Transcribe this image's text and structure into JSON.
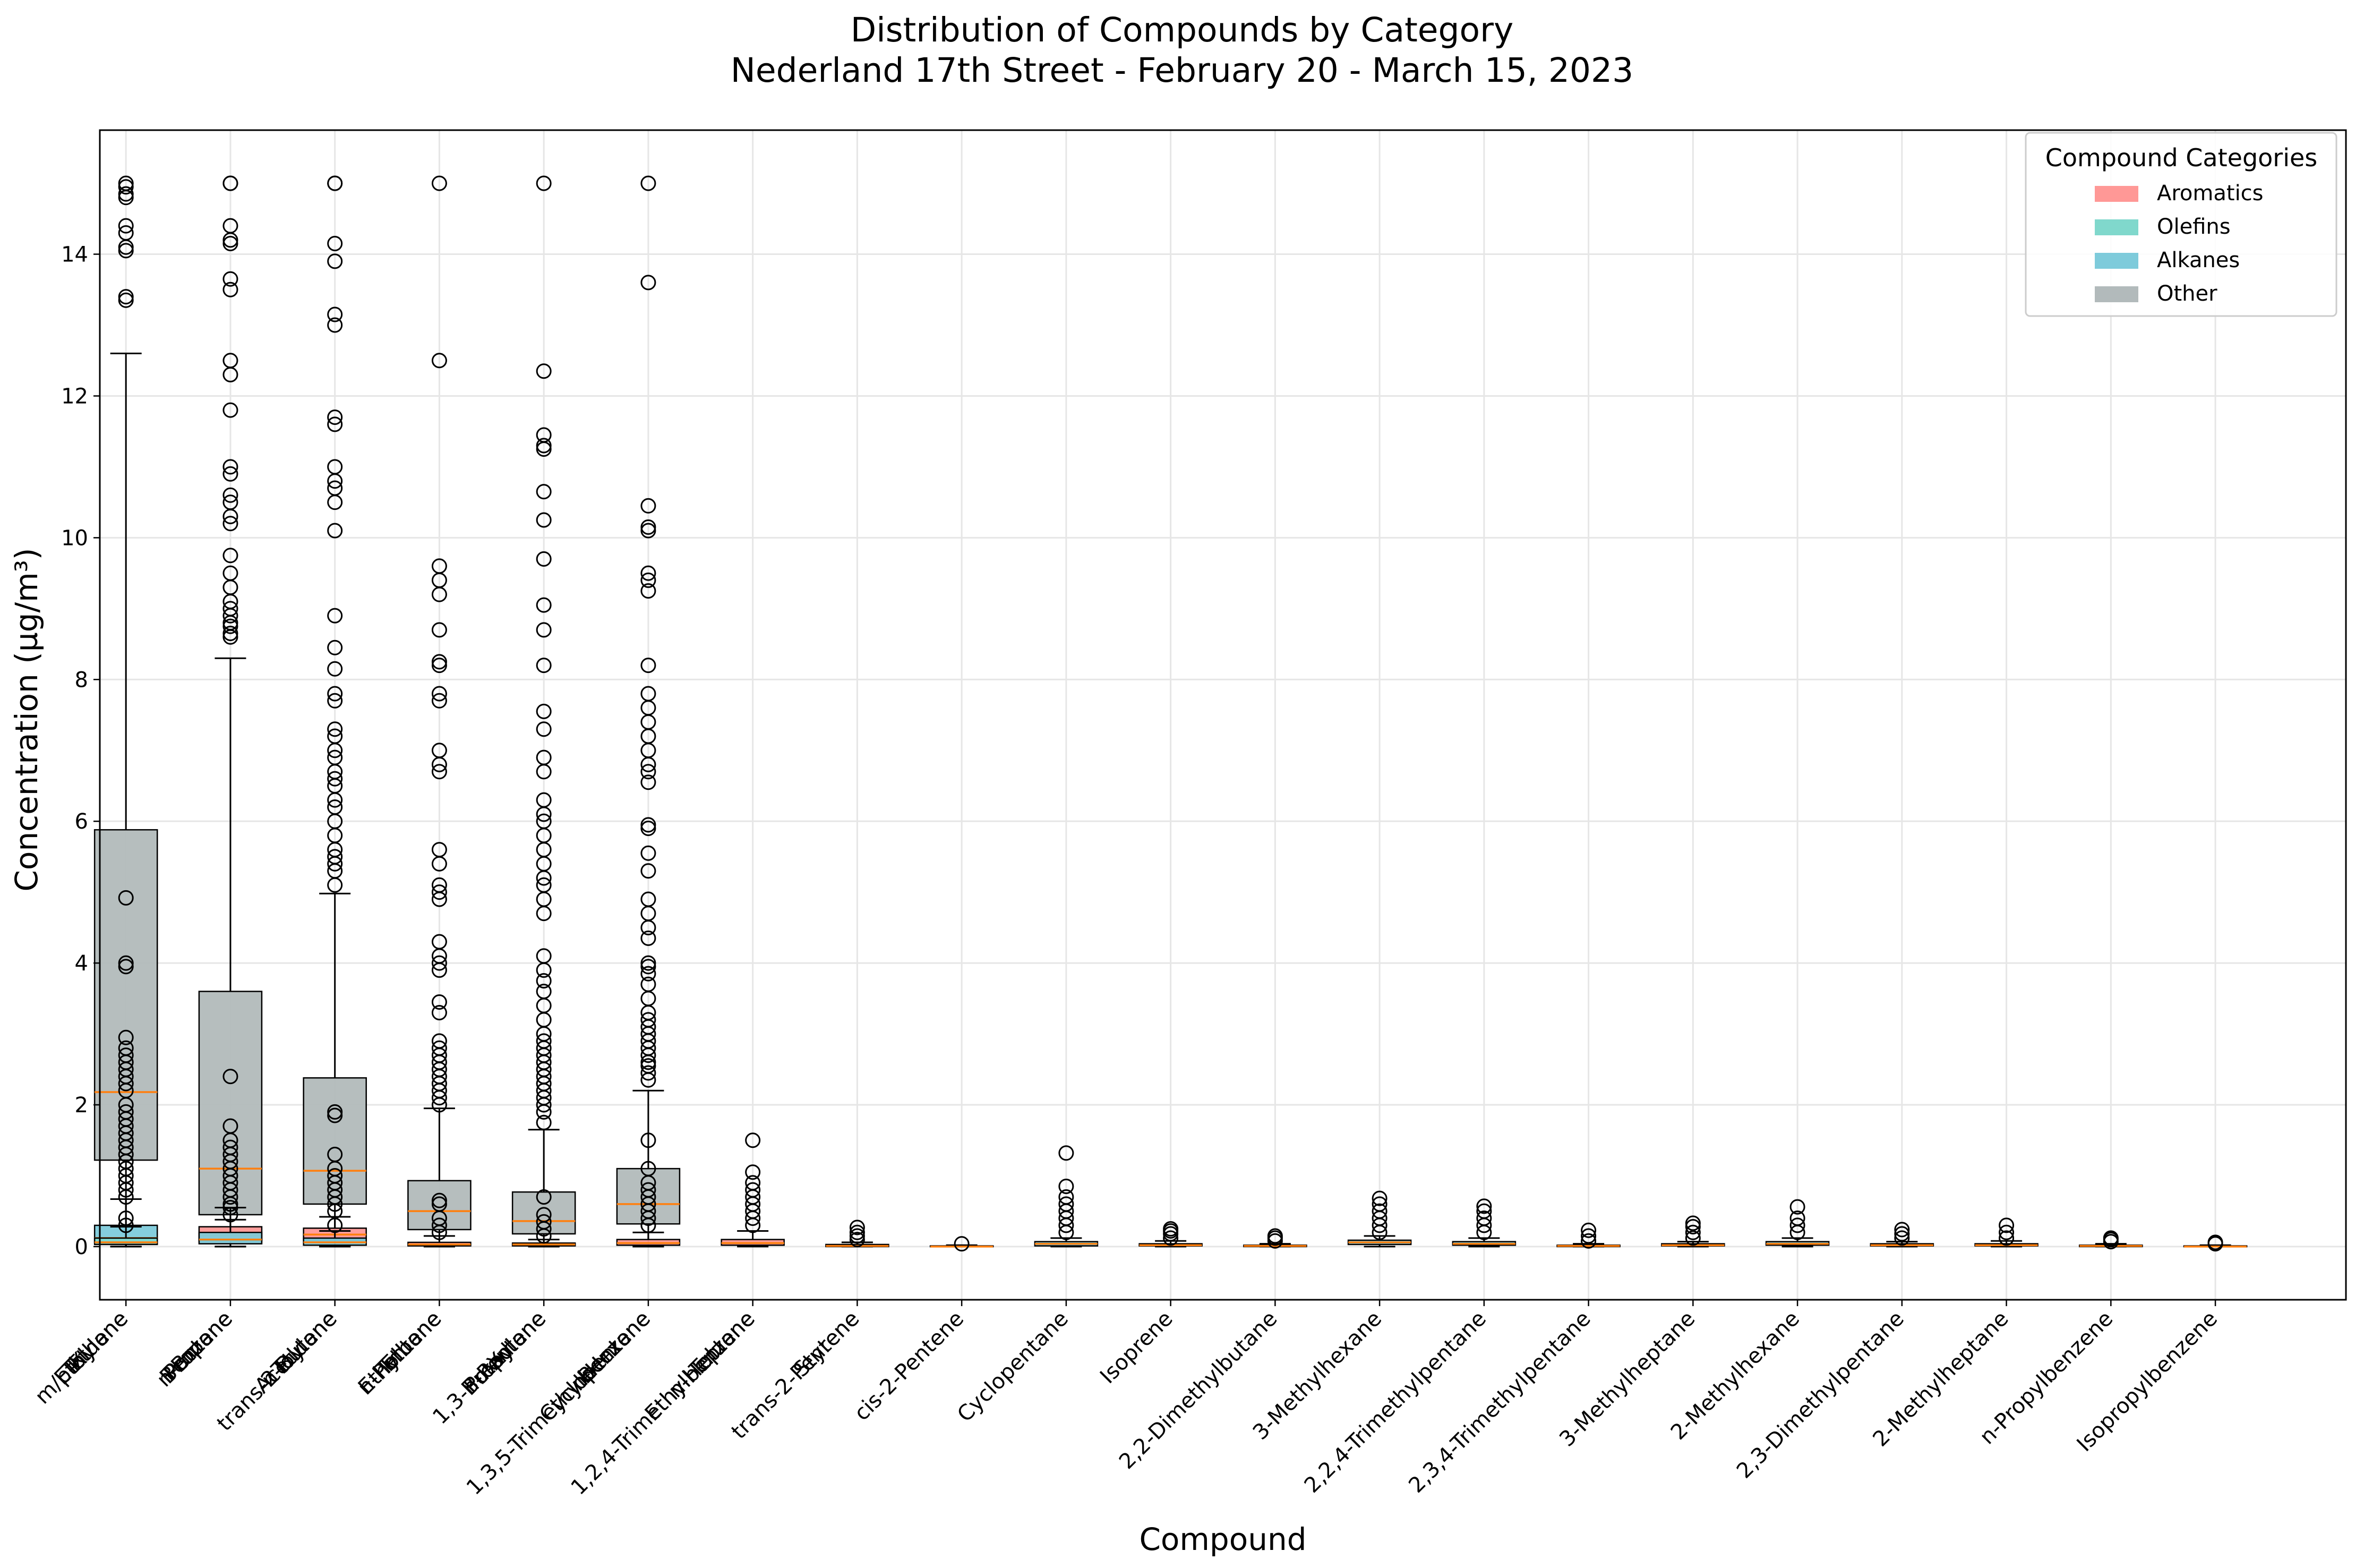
{
  "chart_data": {
    "type": "boxplot",
    "title": "Distribution of Compounds by Category",
    "subtitle": "Nederland 17th Street - February 20 - March 15, 2023",
    "xlabel": "Compound",
    "ylabel": "Concentration (µg/m³)",
    "ylim": [
      -0.75,
      15.75
    ],
    "yticks": [
      0,
      2,
      4,
      6,
      8,
      10,
      12,
      14
    ],
    "grid": true,
    "legend": {
      "title": "Compound Categories",
      "placement": "top-right",
      "entries": [
        {
          "label": "Aromatics",
          "color": "#ff9896"
        },
        {
          "label": "Olefins",
          "color": "#80d8cc"
        },
        {
          "label": "Alkanes",
          "color": "#7ecbdb"
        },
        {
          "label": "Other",
          "color": "#b2babb"
        }
      ]
    },
    "median_color": "#ff7f0e",
    "xtick_labels": [
      "m/p-Xylene",
      "Propane",
      "trans-2-Butene",
      "Ethylbene",
      "1,3-Butadiene",
      "Cyclopentene",
      "1,2,4-Trimethylbenzene",
      "trans-2-Pentene",
      "cis-2-Pentene",
      "Cyclopentane",
      "Isoprene",
      "2,2-Dimethylbutane",
      "3-Methylhexane",
      "2,2,4-Trimethylpentane",
      "2,3,4-Trimethylpentane",
      "3-Methylheptane",
      "2-Methylhexane",
      "2,3-Dimethylpentane",
      "2-Methylheptane",
      "n-Propylbenzene",
      "Isopropylbenzene"
    ],
    "xtick_overlap_labels": [
      [
        "Ethylene",
        "Ethane",
        "Toluene"
      ],
      [
        "n-Butane",
        "Pentane",
        "Benzene"
      ],
      [
        "Toluene",
        "Acetylene",
        "n-Butane"
      ],
      [
        "Ethane",
        "n-Pentane",
        "Toluene"
      ],
      [
        "o-Xylene",
        "n-Pentane",
        "Propylene"
      ],
      [
        "1,3,5-Trimethylbenzene",
        "n-Hexane",
        "Benzene"
      ],
      [
        "n-Heptane",
        "Ethylbenzene",
        "Toluene"
      ],
      [
        "Styrene"
      ]
    ],
    "series": [
      {
        "x": 1,
        "category": "Other",
        "q1": 1.22,
        "median": 2.18,
        "q3": 5.88,
        "whisker_low": 0,
        "whisker_high": 12.6,
        "fliers": [
          15.0,
          14.95,
          14.85,
          14.8,
          14.4,
          14.3,
          14.1,
          14.05,
          13.4,
          13.35
        ]
      },
      {
        "x": 1,
        "category": "Alkanes",
        "q1": 0.05,
        "median": 0.12,
        "q3": 0.3,
        "whisker_low": 0,
        "whisker_high": 0.67,
        "fliers": [
          0.7,
          0.8,
          0.9,
          1.0,
          1.1,
          1.2,
          1.3,
          1.4,
          1.5,
          1.6,
          1.7,
          1.8,
          1.9,
          2.0,
          2.2,
          2.3,
          2.4,
          2.5,
          2.6,
          2.7,
          2.8,
          2.95,
          3.95,
          4.0,
          4.92
        ]
      },
      {
        "x": 1,
        "category": "Olefins",
        "q1": 0.03,
        "median": 0.06,
        "q3": 0.12,
        "whisker_low": 0,
        "whisker_high": 0.28,
        "fliers": [
          0.3,
          0.4
        ]
      },
      {
        "x": 2,
        "category": "Other",
        "q1": 0.45,
        "median": 1.1,
        "q3": 3.6,
        "whisker_low": 0,
        "whisker_high": 8.3,
        "fliers": [
          8.6,
          8.65,
          8.75,
          8.8,
          8.9,
          9.0,
          9.1,
          9.3,
          9.5,
          9.75,
          10.2,
          10.3,
          10.5,
          10.6,
          10.9,
          11.0,
          11.8,
          12.3,
          12.5,
          13.5,
          13.65,
          14.15,
          14.2,
          14.4,
          15.0,
          15.0
        ]
      },
      {
        "x": 2,
        "category": "Aromatics",
        "q1": 0.08,
        "median": 0.16,
        "q3": 0.28,
        "whisker_low": 0,
        "whisker_high": 0.55,
        "fliers": [
          0.6,
          0.7,
          0.8,
          0.9,
          1.0,
          1.1,
          1.2,
          1.3,
          1.4,
          1.5,
          1.7,
          2.4
        ]
      },
      {
        "x": 2,
        "category": "Alkanes",
        "q1": 0.04,
        "median": 0.1,
        "q3": 0.2,
        "whisker_low": 0,
        "whisker_high": 0.38,
        "fliers": [
          0.45,
          0.55
        ]
      },
      {
        "x": 3,
        "category": "Other",
        "q1": 0.6,
        "median": 1.07,
        "q3": 2.38,
        "whisker_low": 0,
        "whisker_high": 4.98,
        "fliers": [
          5.1,
          5.3,
          5.4,
          5.5,
          5.6,
          5.8,
          6.0,
          6.2,
          6.3,
          6.5,
          6.6,
          6.7,
          6.9,
          7.0,
          7.2,
          7.3,
          7.7,
          7.8,
          8.15,
          8.45,
          8.9,
          10.1,
          10.5,
          10.7,
          10.8,
          11.0,
          11.6,
          11.7,
          13.0,
          13.15,
          13.9,
          14.15,
          15.0,
          15.0
        ]
      },
      {
        "x": 3,
        "category": "Aromatics",
        "q1": 0.09,
        "median": 0.17,
        "q3": 0.26,
        "whisker_low": 0,
        "whisker_high": 0.42,
        "fliers": [
          0.5,
          0.6,
          0.7,
          0.8,
          0.9,
          1.0,
          1.1,
          1.3,
          1.85,
          1.9
        ]
      },
      {
        "x": 3,
        "category": "Alkanes",
        "q1": 0.02,
        "median": 0.06,
        "q3": 0.12,
        "whisker_low": 0,
        "whisker_high": 0.22,
        "fliers": [
          0.3
        ]
      },
      {
        "x": 4,
        "category": "Other",
        "q1": 0.24,
        "median": 0.5,
        "q3": 0.93,
        "whisker_low": 0,
        "whisker_high": 1.95,
        "fliers": [
          2.0,
          2.1,
          2.2,
          2.3,
          2.4,
          2.5,
          2.6,
          2.7,
          2.8,
          2.9,
          3.3,
          3.45,
          3.9,
          4.0,
          4.1,
          4.3,
          4.9,
          5.0,
          5.1,
          5.4,
          5.6,
          6.7,
          6.8,
          7.0,
          7.7,
          7.8,
          8.2,
          8.25,
          8.7,
          9.2,
          9.4,
          9.6,
          12.5,
          15.0
        ]
      },
      {
        "x": 4,
        "category": "Aromatics",
        "q1": 0.01,
        "median": 0.03,
        "q3": 0.06,
        "whisker_low": 0,
        "whisker_high": 0.15,
        "fliers": [
          0.2,
          0.3,
          0.4,
          0.6,
          0.65
        ]
      },
      {
        "x": 5,
        "category": "Other",
        "q1": 0.18,
        "median": 0.36,
        "q3": 0.77,
        "whisker_low": 0,
        "whisker_high": 1.65,
        "fliers": [
          1.75,
          1.9,
          2.0,
          2.1,
          2.2,
          2.3,
          2.4,
          2.5,
          2.6,
          2.7,
          2.8,
          2.9,
          3.0,
          3.2,
          3.4,
          3.6,
          3.75,
          3.9,
          4.1,
          4.7,
          4.9,
          5.1,
          5.2,
          5.4,
          5.6,
          5.8,
          6.0,
          6.1,
          6.3,
          6.7,
          6.9,
          7.3,
          7.55,
          8.2,
          8.7,
          9.05,
          9.7,
          10.25,
          10.65,
          11.25,
          11.3,
          11.45,
          12.35,
          15.0
        ]
      },
      {
        "x": 5,
        "category": "Aromatics",
        "q1": 0.01,
        "median": 0.03,
        "q3": 0.05,
        "whisker_low": 0,
        "whisker_high": 0.1,
        "fliers": [
          0.15,
          0.25,
          0.35,
          0.45,
          0.7
        ]
      },
      {
        "x": 6,
        "category": "Other",
        "q1": 0.32,
        "median": 0.6,
        "q3": 1.1,
        "whisker_low": 0,
        "whisker_high": 2.2,
        "fliers": [
          2.35,
          2.45,
          2.55,
          2.6,
          2.7,
          2.8,
          2.9,
          3.0,
          3.1,
          3.2,
          3.3,
          3.5,
          3.7,
          3.85,
          3.95,
          4.0,
          4.35,
          4.5,
          4.7,
          4.9,
          5.3,
          5.55,
          5.9,
          5.95,
          6.55,
          6.7,
          6.8,
          7.0,
          7.2,
          7.4,
          7.6,
          7.8,
          8.2,
          9.25,
          9.4,
          9.5,
          10.1,
          10.15,
          10.45,
          13.6,
          15.0
        ]
      },
      {
        "x": 6,
        "category": "Aromatics",
        "q1": 0.02,
        "median": 0.05,
        "q3": 0.1,
        "whisker_low": 0,
        "whisker_high": 0.2,
        "fliers": [
          0.3,
          0.4,
          0.5,
          0.6,
          0.7,
          0.8,
          0.9,
          1.1,
          1.5
        ]
      },
      {
        "x": 7,
        "category": "Aromatics",
        "q1": 0.02,
        "median": 0.05,
        "q3": 0.1,
        "whisker_low": 0,
        "whisker_high": 0.22,
        "fliers": [
          0.3,
          0.4,
          0.5,
          0.6,
          0.7,
          0.8,
          0.9,
          1.05,
          1.5
        ]
      },
      {
        "x": 8,
        "category": "Olefins",
        "q1": 0.0,
        "median": 0.01,
        "q3": 0.03,
        "whisker_low": 0,
        "whisker_high": 0.06,
        "fliers": [
          0.1,
          0.15,
          0.2,
          0.27
        ]
      },
      {
        "x": 9,
        "category": "Olefins",
        "q1": 0.0,
        "median": 0.0,
        "q3": 0.01,
        "whisker_low": 0,
        "whisker_high": 0.02,
        "fliers": [
          0.04
        ]
      },
      {
        "x": 10,
        "category": "Alkanes",
        "q1": 0.01,
        "median": 0.04,
        "q3": 0.07,
        "whisker_low": 0,
        "whisker_high": 0.12,
        "fliers": [
          0.2,
          0.3,
          0.4,
          0.5,
          0.6,
          0.7,
          0.85,
          1.32
        ]
      },
      {
        "x": 11,
        "category": "Olefins",
        "q1": 0.01,
        "median": 0.02,
        "q3": 0.04,
        "whisker_low": 0,
        "whisker_high": 0.08,
        "fliers": [
          0.12,
          0.18,
          0.22,
          0.25
        ]
      },
      {
        "x": 12,
        "category": "Alkanes",
        "q1": 0.0,
        "median": 0.01,
        "q3": 0.02,
        "whisker_low": 0,
        "whisker_high": 0.04,
        "fliers": [
          0.08,
          0.12,
          0.15
        ]
      },
      {
        "x": 13,
        "category": "Alkanes",
        "q1": 0.03,
        "median": 0.06,
        "q3": 0.09,
        "whisker_low": 0,
        "whisker_high": 0.15,
        "fliers": [
          0.2,
          0.3,
          0.4,
          0.5,
          0.6,
          0.68
        ]
      },
      {
        "x": 14,
        "category": "Alkanes",
        "q1": 0.02,
        "median": 0.04,
        "q3": 0.07,
        "whisker_low": 0,
        "whisker_high": 0.12,
        "fliers": [
          0.2,
          0.3,
          0.4,
          0.5,
          0.57
        ]
      },
      {
        "x": 15,
        "category": "Alkanes",
        "q1": 0.0,
        "median": 0.01,
        "q3": 0.02,
        "whisker_low": 0,
        "whisker_high": 0.04,
        "fliers": [
          0.08,
          0.15,
          0.23
        ]
      },
      {
        "x": 16,
        "category": "Alkanes",
        "q1": 0.01,
        "median": 0.02,
        "q3": 0.04,
        "whisker_low": 0,
        "whisker_high": 0.07,
        "fliers": [
          0.12,
          0.2,
          0.28,
          0.33
        ]
      },
      {
        "x": 17,
        "category": "Alkanes",
        "q1": 0.02,
        "median": 0.04,
        "q3": 0.07,
        "whisker_low": 0,
        "whisker_high": 0.12,
        "fliers": [
          0.2,
          0.3,
          0.4,
          0.56
        ]
      },
      {
        "x": 18,
        "category": "Alkanes",
        "q1": 0.01,
        "median": 0.02,
        "q3": 0.04,
        "whisker_low": 0,
        "whisker_high": 0.07,
        "fliers": [
          0.12,
          0.18,
          0.24
        ]
      },
      {
        "x": 19,
        "category": "Alkanes",
        "q1": 0.01,
        "median": 0.02,
        "q3": 0.04,
        "whisker_low": 0,
        "whisker_high": 0.08,
        "fliers": [
          0.12,
          0.2,
          0.3
        ]
      },
      {
        "x": 20,
        "category": "Aromatics",
        "q1": 0.0,
        "median": 0.01,
        "q3": 0.02,
        "whisker_low": 0,
        "whisker_high": 0.04,
        "fliers": [
          0.07,
          0.1,
          0.12
        ]
      },
      {
        "x": 21,
        "category": "Aromatics",
        "q1": 0.0,
        "median": 0.0,
        "q3": 0.01,
        "whisker_low": 0,
        "whisker_high": 0.02,
        "fliers": [
          0.04,
          0.06
        ]
      }
    ]
  }
}
